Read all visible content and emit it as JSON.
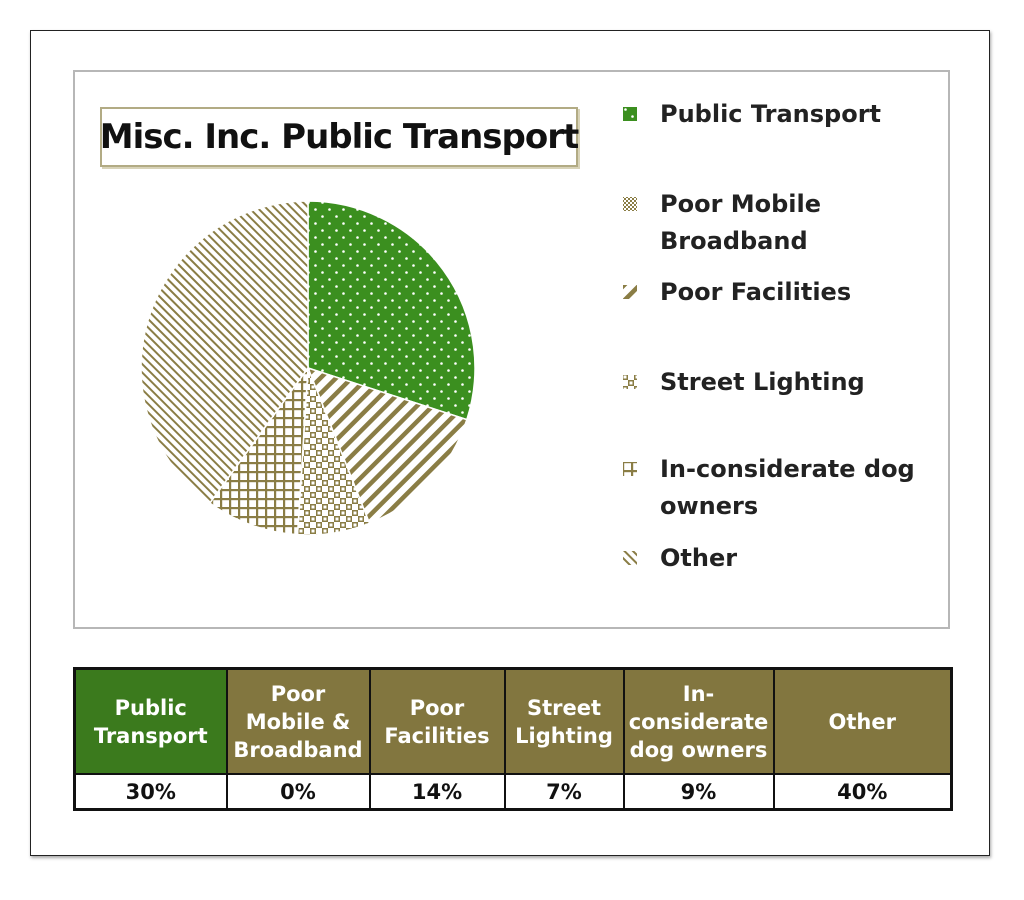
{
  "chart_data": {
    "type": "pie",
    "title": "Misc. Inc. Public Transport",
    "categories": [
      "Public Transport",
      "Poor Mobile Broadband",
      "Poor Facilities",
      "Street Lighting",
      "In-considerate dog owners",
      "Other"
    ],
    "values": [
      30,
      0,
      14,
      7,
      9,
      40
    ],
    "unit": "%",
    "legend_position": "right",
    "colors": {
      "public_transport": "#3b8f1f",
      "pattern": "#8a7d45",
      "pattern_bg": "#ffffff"
    }
  },
  "legend": {
    "items": [
      {
        "label": "Public Transport"
      },
      {
        "label": "Poor Mobile Broadband"
      },
      {
        "label": "Poor Facilities"
      },
      {
        "label": "Street Lighting"
      },
      {
        "label": "In-considerate dog owners"
      },
      {
        "label": "Other"
      }
    ]
  },
  "table": {
    "headers": [
      "Public Transport",
      "Poor Mobile & Broadband",
      "Poor Facilities",
      "Street Lighting",
      "In-considerate dog owners",
      "Other"
    ],
    "values": [
      "30%",
      "0%",
      "14%",
      "7%",
      "9%",
      "40%"
    ]
  }
}
